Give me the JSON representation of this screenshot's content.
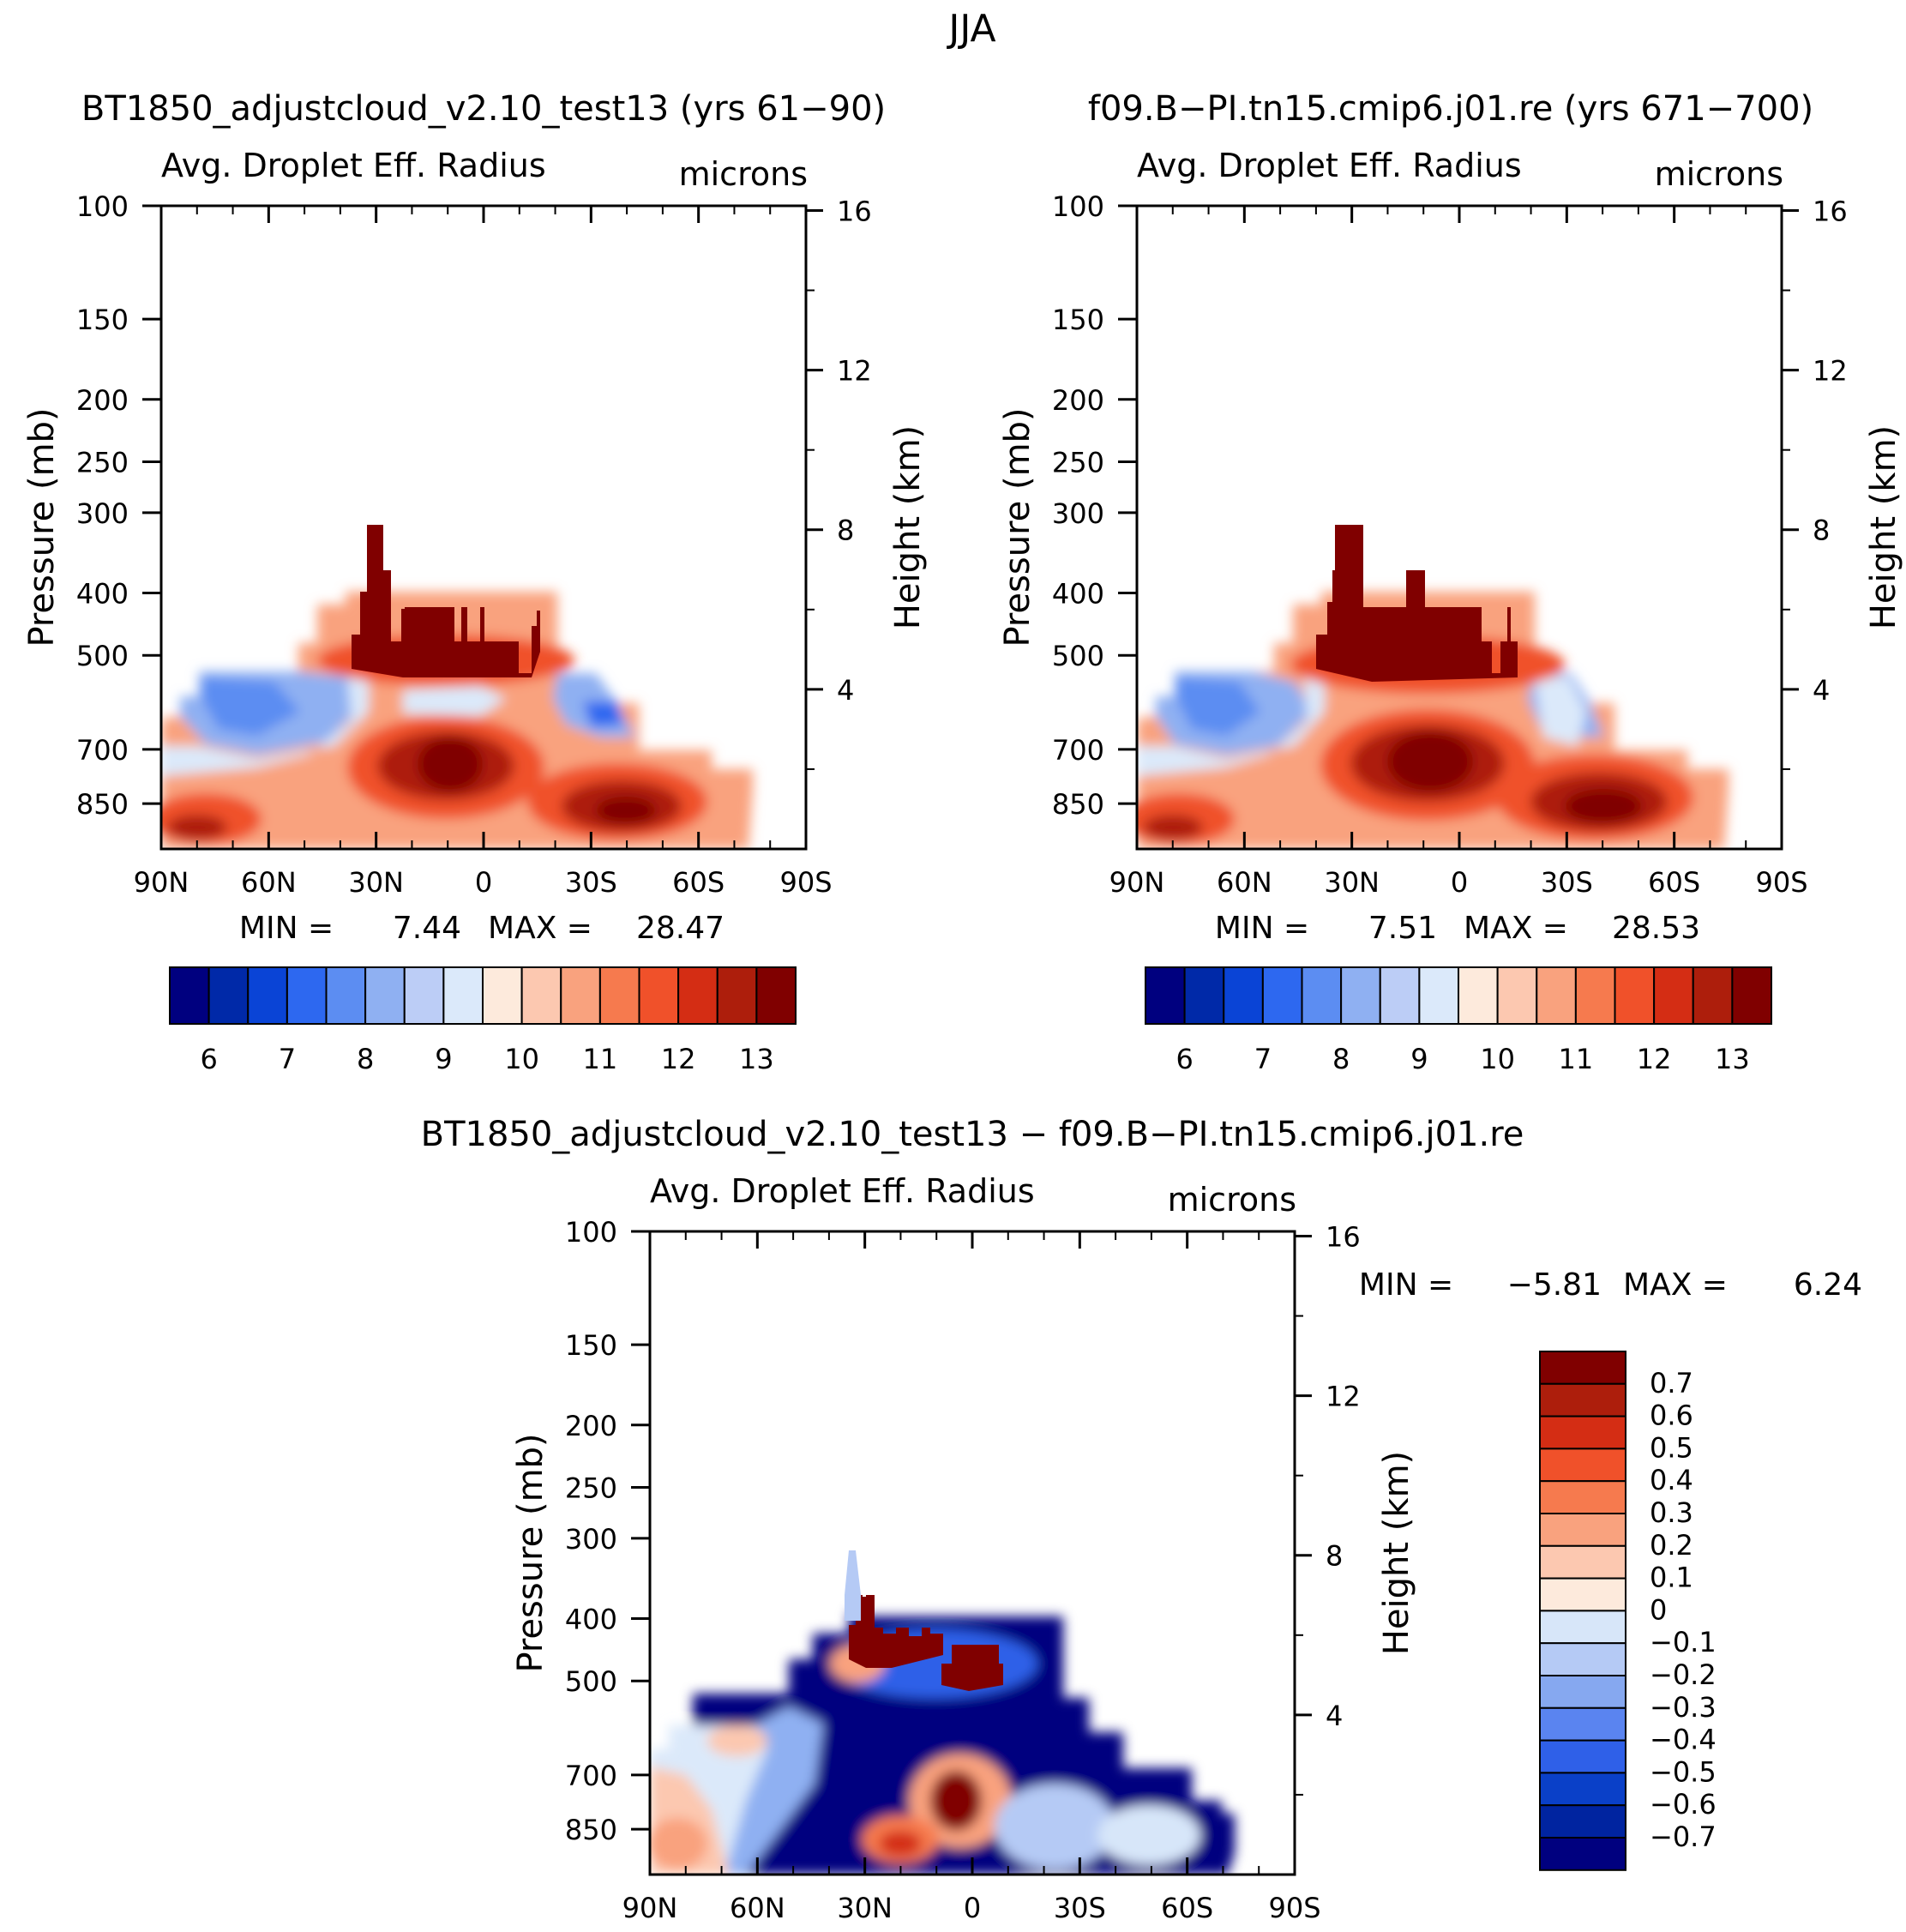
{
  "figure": {
    "season": "JJA"
  },
  "colors": {
    "abs_scale": [
      "#00007f",
      "#0029a8",
      "#0a44d6",
      "#2d68f0",
      "#5c8df2",
      "#8fb0f2",
      "#bccdf6",
      "#dbe9fa",
      "#fdeadc",
      "#fcc8b0",
      "#f9a27e",
      "#f67a4e",
      "#f0512a",
      "#d42d14",
      "#ad1e0c",
      "#800000"
    ],
    "diff_scale": [
      "#00007f",
      "#0024a0",
      "#0a40c8",
      "#2f60e8",
      "#5a84f0",
      "#86a8f0",
      "#b5caf5",
      "#d7e6f9",
      "#fdeadc",
      "#fcc8b0",
      "#f9a27e",
      "#f67a4e",
      "#f0512a",
      "#d42d14",
      "#ad1e0c",
      "#800000"
    ]
  },
  "chart_data": [
    {
      "type": "heatmap",
      "id": "left",
      "title": "BT1850_adjustcloud_v2.10_test13 (yrs 61−90)",
      "subtitle": "Avg. Droplet Eff. Radius",
      "units": "microns",
      "ylabel": "Pressure (mb)",
      "y2label": "Height (km)",
      "x_ticks": [
        "90N",
        "60N",
        "30N",
        "0",
        "30S",
        "60S",
        "90S"
      ],
      "xlim": [
        90,
        -90
      ],
      "y_ticks": [
        100,
        150,
        200,
        250,
        300,
        400,
        500,
        700,
        850
      ],
      "ylim": [
        100,
        1000
      ],
      "y2_ticks": [
        16,
        12,
        8,
        4
      ],
      "min_label": "MIN =",
      "min": "7.44",
      "max_label": "MAX =",
      "max": "28.47",
      "colorbar_labels": [
        "6",
        "7",
        "8",
        "9",
        "10",
        "11",
        "12",
        "13"
      ],
      "colorbar_levels": [
        5.5,
        6,
        6.5,
        7,
        7.5,
        8,
        8.5,
        9,
        9.5,
        10,
        10.5,
        11,
        11.5,
        12,
        12.5,
        13,
        13.5
      ]
    },
    {
      "type": "heatmap",
      "id": "right",
      "title": "f09.B−PI.tn15.cmip6.j01.re (yrs 671−700)",
      "subtitle": "Avg. Droplet Eff. Radius",
      "units": "microns",
      "ylabel": "Pressure (mb)",
      "y2label": "Height (km)",
      "x_ticks": [
        "90N",
        "60N",
        "30N",
        "0",
        "30S",
        "60S",
        "90S"
      ],
      "xlim": [
        90,
        -90
      ],
      "y_ticks": [
        100,
        150,
        200,
        250,
        300,
        400,
        500,
        700,
        850
      ],
      "ylim": [
        100,
        1000
      ],
      "y2_ticks": [
        16,
        12,
        8,
        4
      ],
      "min_label": "MIN =",
      "min": "7.51",
      "max_label": "MAX =",
      "max": "28.53",
      "colorbar_labels": [
        "6",
        "7",
        "8",
        "9",
        "10",
        "11",
        "12",
        "13"
      ],
      "colorbar_levels": [
        5.5,
        6,
        6.5,
        7,
        7.5,
        8,
        8.5,
        9,
        9.5,
        10,
        10.5,
        11,
        11.5,
        12,
        12.5,
        13,
        13.5
      ]
    },
    {
      "type": "heatmap",
      "id": "diff",
      "title": "BT1850_adjustcloud_v2.10_test13 − f09.B−PI.tn15.cmip6.j01.re",
      "subtitle": "Avg. Droplet Eff. Radius",
      "units": "microns",
      "ylabel": "Pressure (mb)",
      "y2label": "Height (km)",
      "x_ticks": [
        "90N",
        "60N",
        "30N",
        "0",
        "30S",
        "60S",
        "90S"
      ],
      "xlim": [
        90,
        -90
      ],
      "y_ticks": [
        100,
        150,
        200,
        250,
        300,
        400,
        500,
        700,
        850
      ],
      "ylim": [
        100,
        1000
      ],
      "y2_ticks": [
        16,
        12,
        8,
        4
      ],
      "min_label": "MIN =",
      "min": "−5.81",
      "max_label": "MAX =",
      "max": "6.24",
      "colorbar_labels": [
        "0.7",
        "0.6",
        "0.5",
        "0.4",
        "0.3",
        "0.2",
        "0.1",
        "0",
        "−0.1",
        "−0.2",
        "−0.3",
        "−0.4",
        "−0.5",
        "−0.6",
        "−0.7"
      ]
    }
  ]
}
